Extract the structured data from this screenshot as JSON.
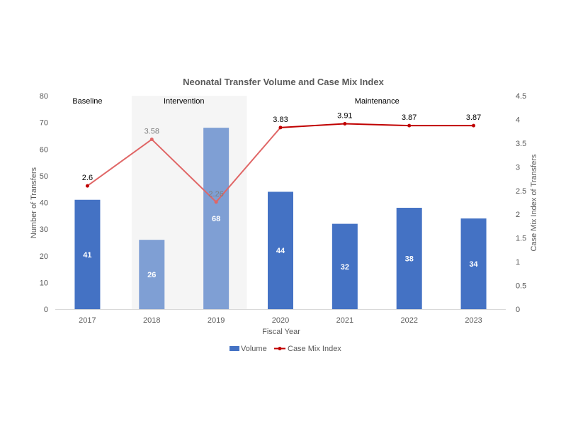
{
  "chart_data": {
    "type": "bar",
    "title": "Neonatal Transfer Volume and Case Mix Index",
    "xlabel": "Fiscal Year",
    "ylabel": "Number of Transfers",
    "y2label": "Case Mix Index of Transfers",
    "categories": [
      "2017",
      "2018",
      "2019",
      "2020",
      "2021",
      "2022",
      "2023"
    ],
    "ylim": [
      0,
      80
    ],
    "yticks": [
      0,
      10,
      20,
      30,
      40,
      50,
      60,
      70,
      80
    ],
    "y2lim": [
      0,
      4.5
    ],
    "y2ticks": [
      "0",
      "0.5",
      "1",
      "1.5",
      "2",
      "2.5",
      "3",
      "3.5",
      "4",
      "4.5"
    ],
    "series": [
      {
        "name": "Volume",
        "type": "bar",
        "axis": "left",
        "values": [
          41,
          26,
          68,
          44,
          32,
          38,
          34
        ],
        "color": "#4472c4",
        "highlight_color": "#7f9fd4"
      },
      {
        "name": "Case Mix Index",
        "type": "line",
        "axis": "right",
        "values": [
          2.6,
          3.58,
          2.26,
          3.83,
          3.91,
          3.87,
          3.87
        ],
        "color": "#c00000",
        "highlight_color": "#e06666"
      }
    ],
    "phases": [
      {
        "label": "Baseline",
        "categories": [
          "2017"
        ],
        "shaded": false
      },
      {
        "label": "Intervention",
        "categories": [
          "2018",
          "2019"
        ],
        "shaded": true
      },
      {
        "label": "Maintenance",
        "categories": [
          "2020",
          "2021",
          "2022",
          "2023"
        ],
        "shaded": false
      }
    ],
    "legend": {
      "position": "bottom"
    },
    "grid": false
  }
}
